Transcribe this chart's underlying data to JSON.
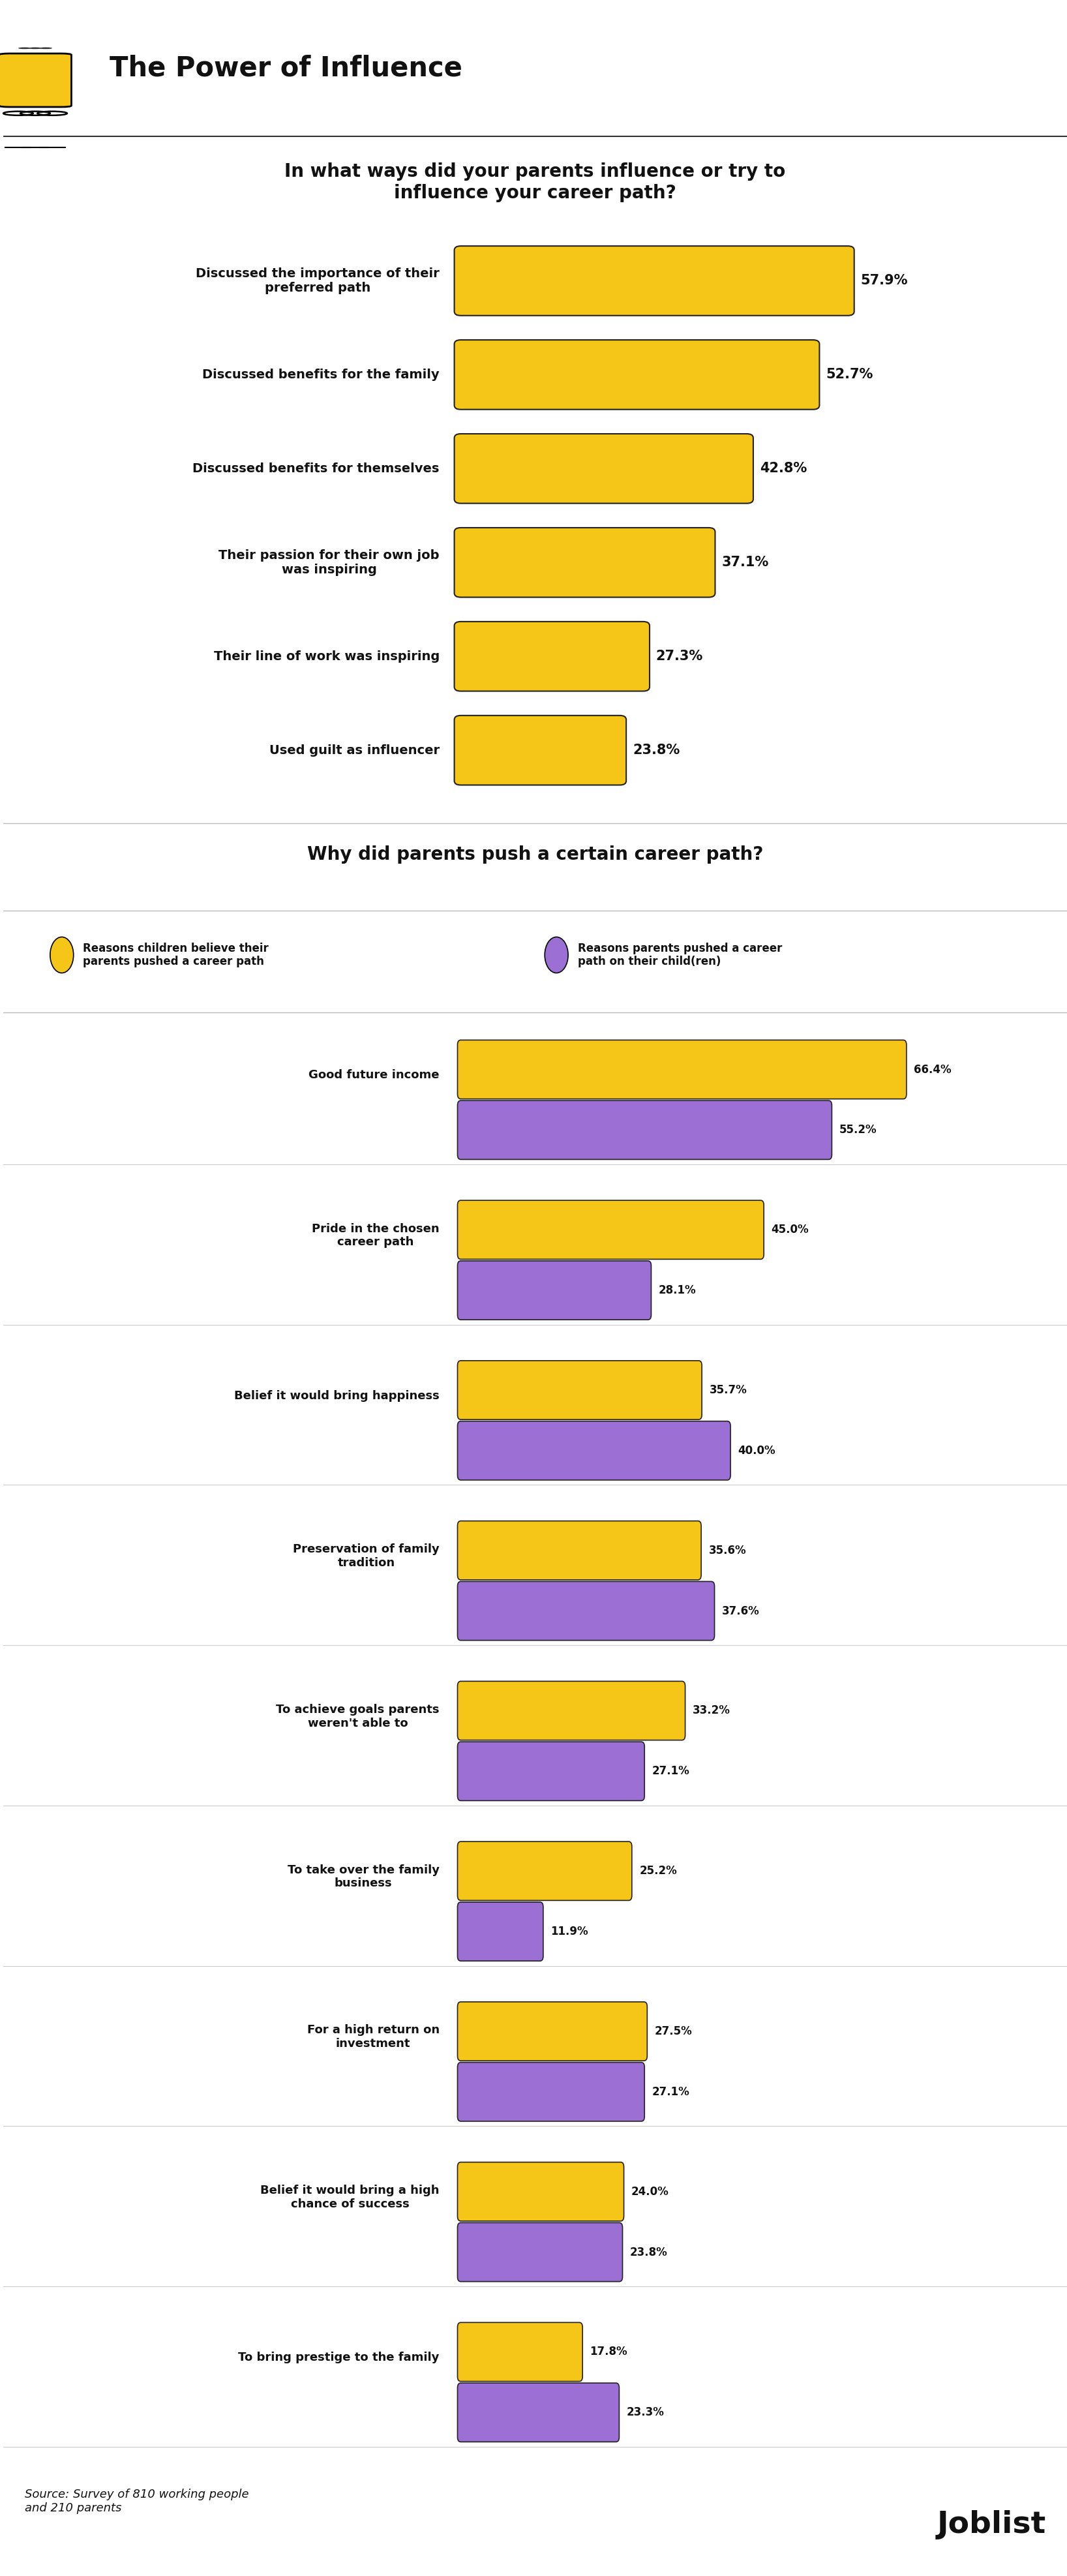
{
  "title": "The Power of Influence",
  "section1_title": "In what ways did your parents influence or try to\ninfluence your career path?",
  "section1_categories": [
    "Discussed the importance of their\npreferred path",
    "Discussed benefits for the family",
    "Discussed benefits for themselves",
    "Their passion for their own job\nwas inspiring",
    "Their line of work was inspiring",
    "Used guilt as influencer"
  ],
  "section1_values": [
    57.9,
    52.7,
    42.8,
    37.1,
    27.3,
    23.8
  ],
  "section1_bar_color": "#F5C518",
  "section2_title": "Why did parents push a certain career path?",
  "legend1_label": "Reasons children believe their\nparents pushed a career path",
  "legend2_label": "Reasons parents pushed a career\npath on their child(ren)",
  "section2_categories": [
    "Good future income",
    "Pride in the chosen\ncareer path",
    "Belief it would bring happiness",
    "Preservation of family\ntradition",
    "To achieve goals parents\nweren't able to",
    "To take over the family\nbusiness",
    "For a high return on\ninvestment",
    "Belief it would bring a high\nchance of success",
    "To bring prestige to the family"
  ],
  "section2_values_yellow": [
    66.4,
    45.0,
    35.7,
    35.6,
    33.2,
    25.2,
    27.5,
    24.0,
    17.8
  ],
  "section2_values_purple": [
    55.2,
    28.1,
    40.0,
    37.6,
    27.1,
    11.9,
    27.1,
    23.8,
    23.3
  ],
  "yellow_color": "#F5C518",
  "purple_color": "#9B6FD4",
  "background_color": "#FFFFFF",
  "bar_outline_color": "#222222",
  "text_color": "#111111",
  "source_text": "Source: Survey of 810 working people\nand 210 parents",
  "brand_text": "Joblist",
  "max_val_s1": 70,
  "max_val_s2": 75
}
